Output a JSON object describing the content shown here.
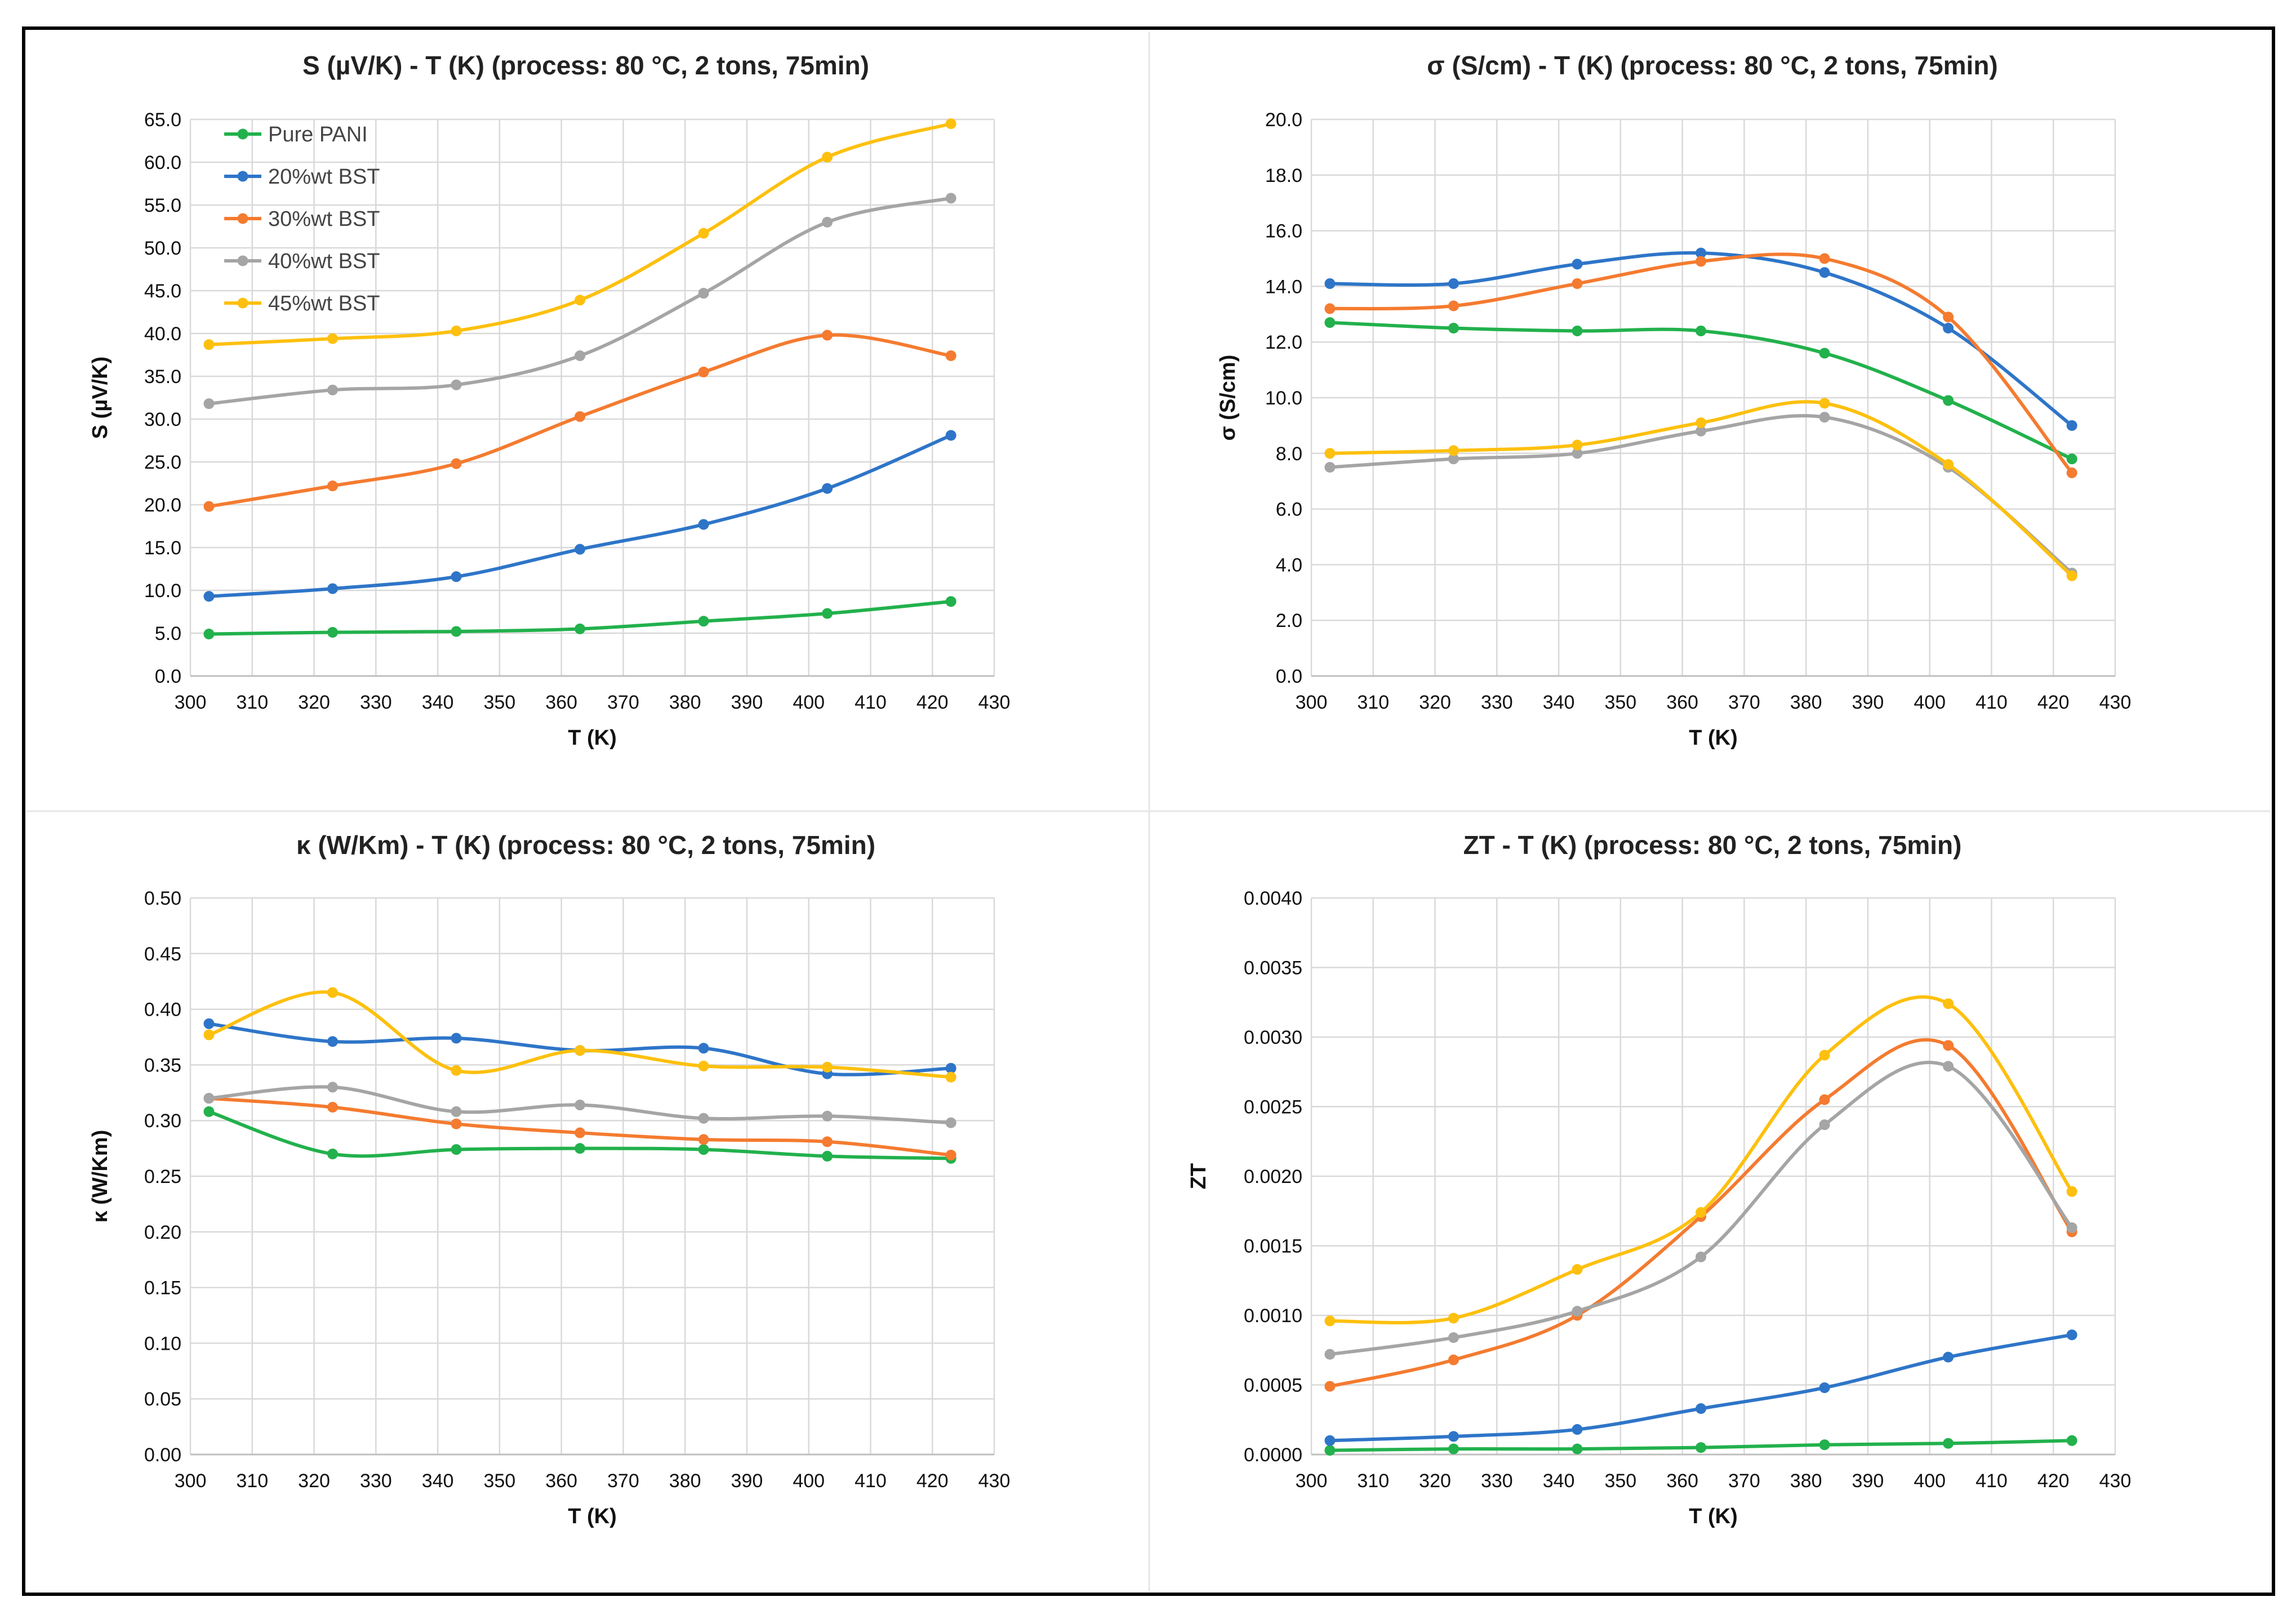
{
  "chart_data": [
    {
      "type": "line",
      "title": "S (µV/K) - T (K) (process: 80 °C, 2 tons, 75min)",
      "xlabel": "T (K)",
      "ylabel": "S (µV/K)",
      "xlim": [
        300,
        430
      ],
      "ylim": [
        0,
        65
      ],
      "xticks": [
        "300",
        "310",
        "320",
        "330",
        "340",
        "350",
        "360",
        "370",
        "380",
        "390",
        "400",
        "410",
        "420",
        "430"
      ],
      "yticks": [
        "0.0",
        "5.0",
        "10.0",
        "15.0",
        "20.0",
        "25.0",
        "30.0",
        "35.0",
        "40.0",
        "45.0",
        "50.0",
        "55.0",
        "60.0",
        "65.0"
      ],
      "grid": true,
      "legend": "top-left",
      "x": [
        303,
        323,
        343,
        363,
        383,
        403,
        423
      ],
      "series": [
        {
          "name": "Pure PANI",
          "color": "#22b14c",
          "values": [
            4.9,
            5.1,
            5.2,
            5.5,
            6.4,
            7.3,
            8.7
          ]
        },
        {
          "name": "20%wt BST",
          "color": "#2e75c8",
          "values": [
            9.3,
            10.2,
            11.6,
            14.8,
            17.7,
            21.9,
            28.1
          ]
        },
        {
          "name": "30%wt BST",
          "color": "#f47b30",
          "values": [
            19.8,
            22.2,
            24.8,
            30.3,
            35.5,
            39.8,
            37.4
          ]
        },
        {
          "name": "40%wt BST",
          "color": "#a5a5a5",
          "values": [
            31.8,
            33.4,
            34.0,
            37.4,
            44.7,
            53.0,
            55.8
          ]
        },
        {
          "name": "45%wt BST",
          "color": "#fdc00f",
          "values": [
            38.7,
            39.4,
            40.3,
            43.9,
            51.7,
            60.6,
            64.5
          ]
        }
      ]
    },
    {
      "type": "line",
      "title": "σ (S/cm) - T (K) (process: 80 °C, 2 tons, 75min)",
      "xlabel": "T (K)",
      "ylabel": "σ (S/cm)",
      "xlim": [
        300,
        430
      ],
      "ylim": [
        0,
        20
      ],
      "xticks": [
        "300",
        "310",
        "320",
        "330",
        "340",
        "350",
        "360",
        "370",
        "380",
        "390",
        "400",
        "410",
        "420",
        "430"
      ],
      "yticks": [
        "0.0",
        "2.0",
        "4.0",
        "6.0",
        "8.0",
        "10.0",
        "12.0",
        "14.0",
        "16.0",
        "18.0",
        "20.0"
      ],
      "grid": true,
      "x": [
        303,
        323,
        343,
        363,
        383,
        403,
        423
      ],
      "series": [
        {
          "name": "Pure PANI",
          "color": "#22b14c",
          "values": [
            12.7,
            12.5,
            12.4,
            12.4,
            11.6,
            9.9,
            7.8
          ]
        },
        {
          "name": "20%wt BST",
          "color": "#2e75c8",
          "values": [
            14.1,
            14.1,
            14.8,
            15.2,
            14.5,
            12.5,
            9.0
          ]
        },
        {
          "name": "30%wt BST",
          "color": "#f47b30",
          "values": [
            13.2,
            13.3,
            14.1,
            14.9,
            15.0,
            12.9,
            7.3
          ]
        },
        {
          "name": "40%wt BST",
          "color": "#a5a5a5",
          "values": [
            7.5,
            7.8,
            8.0,
            8.8,
            9.3,
            7.5,
            3.7
          ]
        },
        {
          "name": "45%wt BST",
          "color": "#fdc00f",
          "values": [
            8.0,
            8.1,
            8.3,
            9.1,
            9.8,
            7.6,
            3.6
          ]
        }
      ]
    },
    {
      "type": "line",
      "title": "κ (W/Km) - T (K) (process: 80 °C, 2 tons, 75min)",
      "xlabel": "T (K)",
      "ylabel": "κ (W/Km)",
      "xlim": [
        300,
        430
      ],
      "ylim": [
        0,
        0.5
      ],
      "xticks": [
        "300",
        "310",
        "320",
        "330",
        "340",
        "350",
        "360",
        "370",
        "380",
        "390",
        "400",
        "410",
        "420",
        "430"
      ],
      "yticks": [
        "0.00",
        "0.05",
        "0.10",
        "0.15",
        "0.20",
        "0.25",
        "0.30",
        "0.35",
        "0.40",
        "0.45",
        "0.50"
      ],
      "grid": true,
      "x": [
        303,
        323,
        343,
        363,
        383,
        403,
        423
      ],
      "series": [
        {
          "name": "Pure PANI",
          "color": "#22b14c",
          "values": [
            0.308,
            0.27,
            0.274,
            0.275,
            0.274,
            0.268,
            0.266
          ]
        },
        {
          "name": "20%wt BST",
          "color": "#2e75c8",
          "values": [
            0.387,
            0.371,
            0.374,
            0.363,
            0.365,
            0.342,
            0.347
          ]
        },
        {
          "name": "30%wt BST",
          "color": "#f47b30",
          "values": [
            0.32,
            0.312,
            0.297,
            0.289,
            0.283,
            0.281,
            0.269
          ]
        },
        {
          "name": "40%wt BST",
          "color": "#a5a5a5",
          "values": [
            0.32,
            0.33,
            0.308,
            0.314,
            0.302,
            0.304,
            0.298
          ]
        },
        {
          "name": "45%wt BST",
          "color": "#fdc00f",
          "values": [
            0.377,
            0.415,
            0.345,
            0.363,
            0.349,
            0.348,
            0.339
          ]
        }
      ]
    },
    {
      "type": "line",
      "title": "ZT - T (K) (process: 80 °C, 2 tons, 75min)",
      "xlabel": "T (K)",
      "ylabel": "ZT",
      "xlim": [
        300,
        430
      ],
      "ylim": [
        0,
        0.004
      ],
      "xticks": [
        "300",
        "310",
        "320",
        "330",
        "340",
        "350",
        "360",
        "370",
        "380",
        "390",
        "400",
        "410",
        "420",
        "430"
      ],
      "yticks": [
        "0.0000",
        "0.0005",
        "0.0010",
        "0.0015",
        "0.0020",
        "0.0025",
        "0.0030",
        "0.0035",
        "0.0040"
      ],
      "grid": true,
      "x": [
        303,
        323,
        343,
        363,
        383,
        403,
        423
      ],
      "series": [
        {
          "name": "Pure PANI",
          "color": "#22b14c",
          "values": [
            3e-05,
            4e-05,
            4e-05,
            5e-05,
            7e-05,
            8e-05,
            0.0001
          ]
        },
        {
          "name": "20%wt BST",
          "color": "#2e75c8",
          "values": [
            0.0001,
            0.00013,
            0.00018,
            0.00033,
            0.00048,
            0.0007,
            0.00086
          ]
        },
        {
          "name": "30%wt BST",
          "color": "#f47b30",
          "values": [
            0.00049,
            0.00068,
            0.001,
            0.00171,
            0.00255,
            0.00294,
            0.0016
          ]
        },
        {
          "name": "40%wt BST",
          "color": "#a5a5a5",
          "values": [
            0.00072,
            0.00084,
            0.00103,
            0.00142,
            0.00237,
            0.00279,
            0.00163
          ]
        },
        {
          "name": "45%wt BST",
          "color": "#fdc00f",
          "values": [
            0.00096,
            0.00098,
            0.00133,
            0.00174,
            0.00287,
            0.00324,
            0.00189
          ]
        }
      ]
    }
  ]
}
